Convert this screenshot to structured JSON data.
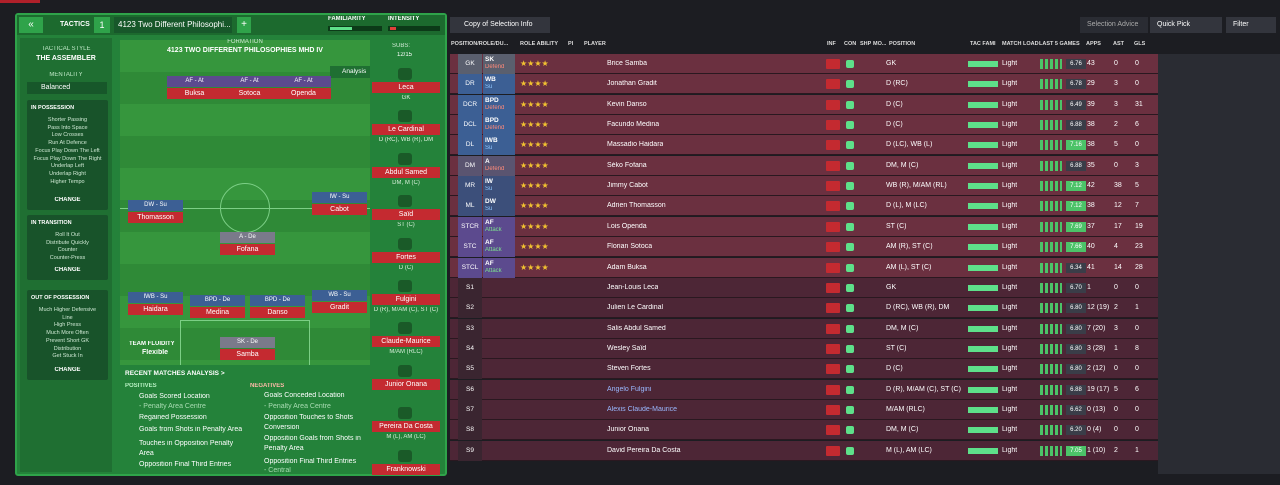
{
  "header": {
    "tactics": "TACTICS",
    "slot": "1",
    "tactic": "4123 Two Different Philosophi...",
    "familiarity": "FAMILIARITY",
    "intensity": "INTENSITY"
  },
  "style": {
    "label": "TACTICAL STYLE",
    "name": "THE ASSEMBLER",
    "mentality_label": "MENTALITY",
    "mentality": "Balanced"
  },
  "sections": [
    {
      "title": "IN POSSESSION",
      "items": [
        "Shorter Passing",
        "Pass Into Space",
        "Low Crosses",
        "Run At Defence",
        "Focus Play Down The Left",
        "Focus Play Down The Right",
        "Underlap Left",
        "Underlap Right",
        "Higher Tempo"
      ],
      "change": "CHANGE"
    },
    {
      "title": "IN TRANSITION",
      "items": [
        "Roll It Out",
        "Distribute Quickly",
        "Counter",
        "Counter-Press"
      ],
      "change": "CHANGE"
    },
    {
      "title": "OUT OF POSSESSION",
      "items": [
        "Much Higher Defensive",
        "Line",
        "High Press",
        "Much More Often",
        "Prevent Short GK",
        "Distribution",
        "Get Stuck In"
      ],
      "change": "CHANGE"
    }
  ],
  "formation": {
    "label": "FORMATION",
    "name": "4123 TWO DIFFERENT PHILOSOPHIES MHD IV",
    "subs_label": "SUBS:",
    "subs": "12/15",
    "analysis": "Analysis",
    "fluidity_label": "TEAM FLUIDITY",
    "fluidity": "Flexible"
  },
  "pitch": [
    {
      "role": "AF - At",
      "name": "Buksa"
    },
    {
      "role": "AF - At",
      "name": "Sotoca"
    },
    {
      "role": "AF - At",
      "name": "Openda"
    },
    {
      "role": "DW - Su",
      "name": "Thomasson"
    },
    {
      "role": "IW - Su",
      "name": "Cabot"
    },
    {
      "role": "A - De",
      "name": "Fofana"
    },
    {
      "role": "IWB - Su",
      "name": "Haidara"
    },
    {
      "role": "BPD - De",
      "name": "Medina"
    },
    {
      "role": "BPD - De",
      "name": "Danso"
    },
    {
      "role": "WB - Su",
      "name": "Gradit"
    },
    {
      "role": "SK - De",
      "name": "Samba"
    }
  ],
  "subs": [
    {
      "name": "Leca",
      "pos": "GK"
    },
    {
      "name": "Le Cardinal",
      "pos": "D (RC), WB (R), DM"
    },
    {
      "name": "Abdul Samed",
      "pos": "DM, M (C)"
    },
    {
      "name": "Saïd",
      "pos": "ST (C)"
    },
    {
      "name": "Fortes",
      "pos": "D (C)"
    },
    {
      "name": "Fulgini",
      "pos": "D (R), M/AM (C), ST (C)"
    },
    {
      "name": "Claude-Maurice",
      "pos": "M/AM (RLC)"
    },
    {
      "name": "Junior Onana"
    },
    {
      "name": "Pereira Da Costa",
      "pos": "M (L), AM (LC)"
    },
    {
      "name": "Franknowski"
    }
  ],
  "analysis": {
    "title": "RECENT MATCHES ANALYSIS >",
    "positives_label": "POSITIVES",
    "negatives_label": "NEGATIVES",
    "positives": [
      "Goals Scored Location",
      "- Penalty Area Centre",
      "Regained Possession",
      "Goals from Shots in Penalty Area",
      "Touches in Opposition Penalty",
      "Area",
      "Opposition Final Third Entries"
    ],
    "negatives": [
      "Goals Conceded Location",
      "- Penalty Area Centre",
      "Opposition Touches to Shots",
      "Conversion",
      "Opposition Goals from Shots in",
      "Penalty Area",
      "Opposition Final Third Entries",
      "- Central"
    ]
  },
  "toolbar": {
    "view": "Copy of Selection Info",
    "advice": "Selection Advice",
    "quick": "Quick Pick",
    "filter": "Filter"
  },
  "table": {
    "columns": [
      "POSITION/ROLE/DU...",
      "ROLE ABILITY",
      "PI",
      "PLAYER",
      "INF",
      "CON",
      "SHP",
      "MO...",
      "POSITION",
      "TAC FAMI",
      "MATCH LOAD",
      "LAST 5 GAMES",
      "APPS",
      "AST",
      "GLS"
    ],
    "rows": [
      {
        "slot": "GK",
        "role": "SK",
        "duty": "Defend",
        "name": "Brice Samba",
        "pos": "GK",
        "load": "Light",
        "rating": "6.76",
        "apps": "43",
        "ast": "0",
        "gls": "0"
      },
      {
        "slot": "DR",
        "role": "WB",
        "duty": "Su",
        "name": "Jonathan Gradit",
        "pos": "D (RC)",
        "load": "Light",
        "rating": "6.78",
        "apps": "29",
        "ast": "3",
        "gls": "0"
      },
      {
        "slot": "DCR",
        "role": "BPD",
        "duty": "Defend",
        "name": "Kevin Danso",
        "pos": "D (C)",
        "load": "Light",
        "rating": "6.49",
        "apps": "39",
        "ast": "3",
        "gls": "31"
      },
      {
        "slot": "DCL",
        "role": "BPD",
        "duty": "Defend",
        "name": "Facundo Medina",
        "pos": "D (C)",
        "load": "Light",
        "rating": "6.88",
        "apps": "38",
        "ast": "2",
        "gls": "6"
      },
      {
        "slot": "DL",
        "role": "IWB",
        "duty": "Su",
        "name": "Massadio Haidara",
        "pos": "D (LC), WB (L)",
        "load": "Light",
        "rating": "7.16",
        "apps": "38",
        "ast": "5",
        "gls": "0"
      },
      {
        "slot": "DM",
        "role": "A",
        "duty": "Defend",
        "name": "Séko Fofana",
        "pos": "DM, M (C)",
        "load": "Light",
        "rating": "6.88",
        "apps": "35",
        "ast": "0",
        "gls": "3"
      },
      {
        "slot": "MR",
        "role": "IW",
        "duty": "Su",
        "name": "Jimmy Cabot",
        "pos": "WB (R), M/AM (RL)",
        "load": "Light",
        "rating": "7.12",
        "apps": "42",
        "ast": "38",
        "gls": "5"
      },
      {
        "slot": "ML",
        "role": "DW",
        "duty": "Su",
        "name": "Adrien Thomasson",
        "pos": "D (L), M (LC)",
        "load": "Light",
        "rating": "7.12",
        "apps": "38",
        "ast": "12",
        "gls": "7"
      },
      {
        "slot": "STCR",
        "role": "AF",
        "duty": "Attack",
        "name": "Lois Openda",
        "pos": "ST (C)",
        "load": "Light",
        "rating": "7.69",
        "apps": "37",
        "ast": "17",
        "gls": "19"
      },
      {
        "slot": "STC",
        "role": "AF",
        "duty": "Attack",
        "name": "Florian Sotoca",
        "pos": "AM (R), ST (C)",
        "load": "Light",
        "rating": "7.66",
        "apps": "40",
        "ast": "4",
        "gls": "23"
      },
      {
        "slot": "STCL",
        "role": "AF",
        "duty": "Attack",
        "name": "Adam Buksa",
        "pos": "AM (L), ST (C)",
        "load": "Light",
        "rating": "6.34",
        "apps": "41",
        "ast": "14",
        "gls": "28"
      },
      {
        "slot": "S1",
        "name": "Jean-Louis Leca",
        "pos": "GK",
        "load": "Light",
        "rating": "6.70",
        "apps": "1",
        "ast": "0",
        "gls": "0"
      },
      {
        "slot": "S2",
        "name": "Julien Le Cardinal",
        "pos": "D (RC), WB (R), DM",
        "load": "Light",
        "rating": "6.80",
        "apps": "12 (19)",
        "ast": "2",
        "gls": "1"
      },
      {
        "slot": "S3",
        "name": "Salis Abdul Samed",
        "pos": "DM, M (C)",
        "load": "Light",
        "rating": "6.80",
        "apps": "7 (20)",
        "ast": "3",
        "gls": "0"
      },
      {
        "slot": "S4",
        "name": "Wesley Saïd",
        "pos": "ST (C)",
        "load": "Light",
        "rating": "6.80",
        "apps": "3 (28)",
        "ast": "1",
        "gls": "8"
      },
      {
        "slot": "S5",
        "name": "Steven Fortes",
        "pos": "D (C)",
        "load": "Light",
        "rating": "6.80",
        "apps": "2 (12)",
        "ast": "0",
        "gls": "0"
      },
      {
        "slot": "S6",
        "name": "Angelo Fulgini",
        "pos": "D (R), M/AM (C), ST (C)",
        "load": "Light",
        "rating": "6.88",
        "apps": "19 (17)",
        "ast": "5",
        "gls": "6"
      },
      {
        "slot": "S7",
        "name": "Alexis Claude-Maurice",
        "pos": "M/AM (RLC)",
        "load": "Light",
        "rating": "6.62",
        "apps": "0 (13)",
        "ast": "0",
        "gls": "0"
      },
      {
        "slot": "S8",
        "name": "Junior Onana",
        "pos": "DM, M (C)",
        "load": "Light",
        "rating": "6.20",
        "apps": "0 (4)",
        "ast": "0",
        "gls": "0"
      },
      {
        "slot": "S9",
        "name": "David Pereira Da Costa",
        "pos": "M (L), AM (LC)",
        "load": "Light",
        "rating": "7.05",
        "apps": "1 (10)",
        "ast": "2",
        "gls": "1"
      }
    ]
  }
}
